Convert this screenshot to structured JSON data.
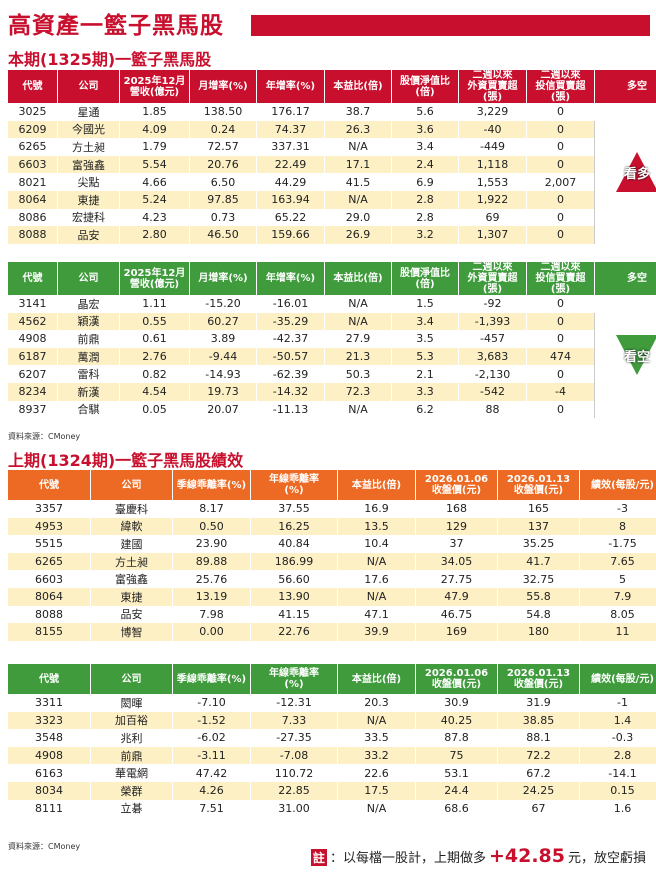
{
  "header": {
    "title": "高資產一籃子黑馬股"
  },
  "section1": {
    "title": "本期(1325期)一籃子黑馬股"
  },
  "section2": {
    "title": "上期(1324期)一籃子黑馬股績效"
  },
  "current_headers": [
    "代號",
    "公司",
    "2025年12月\n營收(億元)",
    "月增率(%)",
    "年增率(%)",
    "本益比(倍)",
    "股價淨值比\n(倍)",
    "二週以來\n外資買賣超(張)",
    "二週以來\n投信買賣超(張)",
    "多空"
  ],
  "bull": {
    "badge": "看多",
    "rows": [
      [
        "3025",
        "星通",
        "1.85",
        "138.50",
        "176.17",
        "38.7",
        "5.6",
        "3,229",
        "0"
      ],
      [
        "6209",
        "今國光",
        "4.09",
        "0.24",
        "74.37",
        "26.3",
        "3.6",
        "-40",
        "0"
      ],
      [
        "6265",
        "方土昶",
        "1.79",
        "72.57",
        "337.31",
        "N/A",
        "3.4",
        "-449",
        "0"
      ],
      [
        "6603",
        "富強鑫",
        "5.54",
        "20.76",
        "22.49",
        "17.1",
        "2.4",
        "1,118",
        "0"
      ],
      [
        "8021",
        "尖點",
        "4.66",
        "6.50",
        "44.29",
        "41.5",
        "6.9",
        "1,553",
        "2,007"
      ],
      [
        "8064",
        "東捷",
        "5.24",
        "97.85",
        "163.94",
        "N/A",
        "2.8",
        "1,922",
        "0"
      ],
      [
        "8086",
        "宏捷科",
        "4.23",
        "0.73",
        "65.22",
        "29.0",
        "2.8",
        "69",
        "0"
      ],
      [
        "8088",
        "品安",
        "2.80",
        "46.50",
        "159.66",
        "26.9",
        "3.2",
        "1,307",
        "0"
      ]
    ]
  },
  "bear": {
    "badge": "看空",
    "rows": [
      [
        "3141",
        "晶宏",
        "1.11",
        "-15.20",
        "-16.01",
        "N/A",
        "1.5",
        "-92",
        "0"
      ],
      [
        "4562",
        "穎漢",
        "0.55",
        "60.27",
        "-35.29",
        "N/A",
        "3.4",
        "-1,393",
        "0"
      ],
      [
        "4908",
        "前鼎",
        "0.61",
        "3.89",
        "-42.37",
        "27.9",
        "3.5",
        "-457",
        "0"
      ],
      [
        "6187",
        "萬潤",
        "2.76",
        "-9.44",
        "-50.57",
        "21.3",
        "5.3",
        "3,683",
        "474"
      ],
      [
        "6207",
        "雷科",
        "0.82",
        "-14.93",
        "-62.39",
        "50.3",
        "2.1",
        "-2,130",
        "0"
      ],
      [
        "8234",
        "新漢",
        "4.54",
        "19.73",
        "-14.32",
        "72.3",
        "3.3",
        "-542",
        "-4"
      ],
      [
        "8937",
        "合騏",
        "0.05",
        "20.07",
        "-11.13",
        "N/A",
        "6.2",
        "88",
        "0"
      ]
    ]
  },
  "source1": "資料來源：CMoney",
  "perf_headers": [
    "代號",
    "公司",
    "季線乖離率(%)",
    "年線乖離率\n(%)",
    "本益比(倍)",
    "2026.01.06\n收盤價(元)",
    "2026.01.13\n收盤價(元)",
    "績效(每股/元)"
  ],
  "perf_bull": [
    [
      "3357",
      "臺慶科",
      "8.17",
      "37.55",
      "16.9",
      "168",
      "165",
      "-3"
    ],
    [
      "4953",
      "緯軟",
      "0.50",
      "16.25",
      "13.5",
      "129",
      "137",
      "8"
    ],
    [
      "5515",
      "建國",
      "23.90",
      "40.84",
      "10.4",
      "37",
      "35.25",
      "-1.75"
    ],
    [
      "6265",
      "方土昶",
      "89.88",
      "186.99",
      "N/A",
      "34.05",
      "41.7",
      "7.65"
    ],
    [
      "6603",
      "富強鑫",
      "25.76",
      "56.60",
      "17.6",
      "27.75",
      "32.75",
      "5"
    ],
    [
      "8064",
      "東捷",
      "13.19",
      "13.90",
      "N/A",
      "47.9",
      "55.8",
      "7.9"
    ],
    [
      "8088",
      "品安",
      "7.98",
      "41.15",
      "47.1",
      "46.75",
      "54.8",
      "8.05"
    ],
    [
      "8155",
      "博智",
      "0.00",
      "22.76",
      "39.9",
      "169",
      "180",
      "11"
    ]
  ],
  "perf_bear": [
    [
      "3311",
      "閎暉",
      "-7.10",
      "-12.31",
      "20.3",
      "30.9",
      "31.9",
      "-1"
    ],
    [
      "3323",
      "加百裕",
      "-1.52",
      "7.33",
      "N/A",
      "40.25",
      "38.85",
      "1.4"
    ],
    [
      "3548",
      "兆利",
      "-6.02",
      "-27.35",
      "33.5",
      "87.8",
      "88.1",
      "-0.3"
    ],
    [
      "4908",
      "前鼎",
      "-3.11",
      "-7.08",
      "33.2",
      "75",
      "72.2",
      "2.8"
    ],
    [
      "6163",
      "華電網",
      "47.42",
      "110.72",
      "22.6",
      "53.1",
      "67.2",
      "-14.1"
    ],
    [
      "8034",
      "榮群",
      "4.26",
      "22.85",
      "17.5",
      "24.4",
      "24.25",
      "0.15"
    ],
    [
      "8111",
      "立碁",
      "7.51",
      "31.00",
      "N/A",
      "68.6",
      "67",
      "1.6"
    ]
  ],
  "source2": "資料來源：CMoney",
  "note": {
    "mark": "註",
    "prefix": "：以每檔一股計，上期做多",
    "value": "+42.85",
    "suffix": "元，放空虧損"
  },
  "colors": {
    "red": "#c8102e",
    "green": "#3f9b3c",
    "orange": "#ec6a23",
    "row_alt": "#fdf0c5"
  }
}
